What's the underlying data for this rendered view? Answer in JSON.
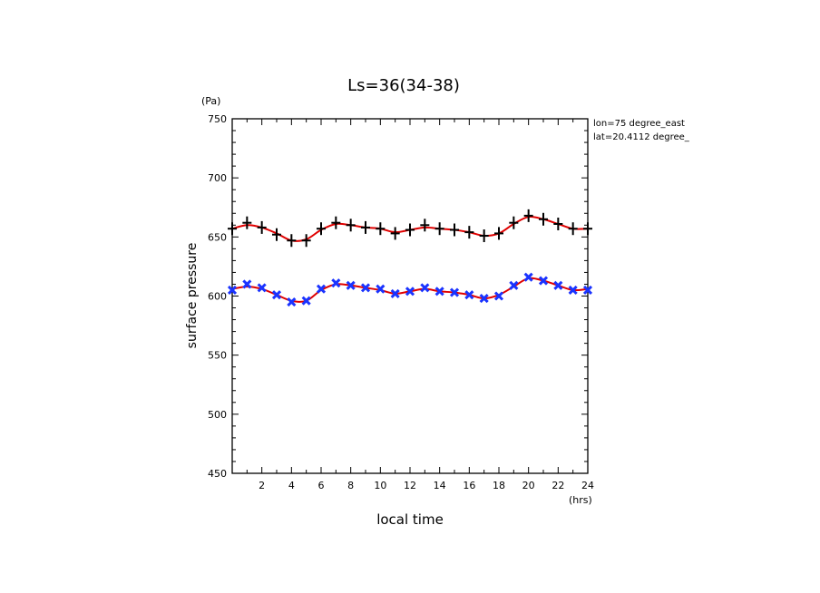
{
  "chart_data": {
    "type": "line",
    "title": "Ls=36(34-38)",
    "xlabel": "local time",
    "ylabel": "surface pressure",
    "x_unit": "(hrs)",
    "y_unit": "(Pa)",
    "annotations": [
      "lon=75 degree_east",
      "lat=20.4112 degree_"
    ],
    "xlim": [
      0,
      24
    ],
    "ylim": [
      450,
      750
    ],
    "x_ticks": [
      2,
      4,
      6,
      8,
      10,
      12,
      14,
      16,
      18,
      20,
      22,
      24
    ],
    "y_ticks": [
      450,
      500,
      550,
      600,
      650,
      700,
      750
    ],
    "grid": false,
    "series": [
      {
        "marker": "plus",
        "marker_color": "#000000",
        "fit_color": "#e00000",
        "x": [
          0,
          1,
          2,
          3,
          4,
          5,
          6,
          7,
          8,
          9,
          10,
          11,
          12,
          13,
          14,
          15,
          16,
          17,
          18,
          19,
          20,
          21,
          22,
          23,
          24
        ],
        "values": [
          657,
          662,
          658,
          652,
          647,
          647,
          657,
          662,
          660,
          658,
          657,
          653,
          656,
          660,
          657,
          656,
          654,
          651,
          653,
          662,
          668,
          665,
          661,
          657,
          657
        ],
        "fit": [
          657,
          660,
          658,
          653,
          647,
          648,
          656,
          661,
          660,
          658,
          657,
          654,
          656,
          658,
          657,
          656,
          654,
          651,
          653,
          661,
          667,
          665,
          661,
          657,
          657
        ]
      },
      {
        "marker": "x",
        "marker_color": "#1a33ff",
        "fit_color": "#e00000",
        "x": [
          0,
          1,
          2,
          3,
          4,
          5,
          6,
          7,
          8,
          9,
          10,
          11,
          12,
          13,
          14,
          15,
          16,
          17,
          18,
          19,
          20,
          21,
          22,
          23,
          24
        ],
        "values": [
          605,
          610,
          607,
          601,
          595,
          596,
          606,
          611,
          609,
          607,
          606,
          602,
          604,
          607,
          604,
          603,
          601,
          598,
          600,
          609,
          616,
          613,
          609,
          605,
          605
        ],
        "fit": [
          606,
          608,
          606,
          601,
          596,
          596,
          605,
          610,
          609,
          607,
          605,
          602,
          604,
          606,
          604,
          603,
          601,
          598,
          601,
          608,
          615,
          613,
          609,
          605,
          606
        ]
      }
    ]
  }
}
